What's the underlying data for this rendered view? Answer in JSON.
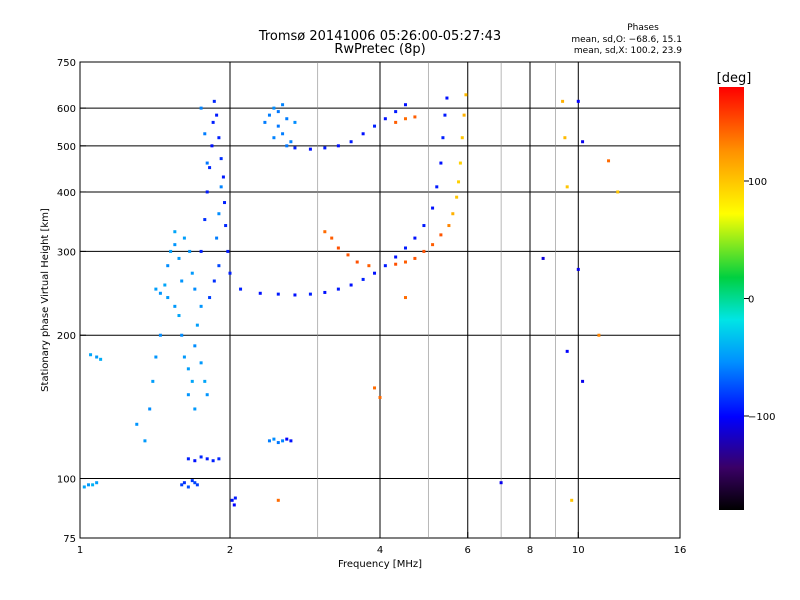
{
  "header": {
    "title_line1": "Tromsø 20141006 05:26:00-05:27:43",
    "title_line2": "RwPretec (8p)",
    "phase_title": "Phases",
    "phase_o": "mean, sd,O: −68.6, 15.1",
    "phase_x": "mean, sd,X: 100.2, 23.9"
  },
  "colorbar": {
    "unit": "[deg]",
    "ticks": [
      {
        "value": 100,
        "label": "100"
      },
      {
        "value": 0,
        "label": "0"
      },
      {
        "value": -100,
        "label": "−100"
      }
    ],
    "range": [
      -180,
      180
    ]
  },
  "chart_data": {
    "type": "scatter",
    "title": "Tromsø 20141006 05:26:00-05:27:43",
    "subtitle": "RwPretec (8p)",
    "xlabel": "Frequency [MHz]",
    "ylabel": "Stationary phase Virtual Height [km]",
    "xscale": "log",
    "yscale": "log",
    "xlim": [
      1,
      16
    ],
    "ylim": [
      75,
      750
    ],
    "x_ticks": [
      {
        "value": 1,
        "label": "1"
      },
      {
        "value": 2,
        "label": "2"
      },
      {
        "value": 4,
        "label": "4"
      },
      {
        "value": 6,
        "label": "6"
      },
      {
        "value": 8,
        "label": "8"
      },
      {
        "value": 10,
        "label": "10"
      },
      {
        "value": 16,
        "label": "16"
      }
    ],
    "y_ticks": [
      {
        "value": 75,
        "label": "75"
      },
      {
        "value": 100,
        "label": "100"
      },
      {
        "value": 200,
        "label": "200"
      },
      {
        "value": 300,
        "label": "300"
      },
      {
        "value": 400,
        "label": "400"
      },
      {
        "value": 500,
        "label": "500"
      },
      {
        "value": 600,
        "label": "600"
      },
      {
        "value": 750,
        "label": "750"
      }
    ],
    "grid_x": [
      2,
      4,
      6,
      8,
      10
    ],
    "grid_y": [
      100,
      200,
      300,
      400,
      500,
      600
    ],
    "minor_x": [
      3,
      5,
      7,
      9
    ],
    "colorbar_label": "[deg]",
    "points": [
      [
        1.02,
        96,
        -45
      ],
      [
        1.04,
        97,
        -50
      ],
      [
        1.06,
        97,
        -40
      ],
      [
        1.08,
        98,
        -48
      ],
      [
        1.05,
        182,
        -45
      ],
      [
        1.08,
        180,
        -50
      ],
      [
        1.1,
        178,
        -42
      ],
      [
        1.3,
        130,
        -52
      ],
      [
        1.35,
        120,
        -50
      ],
      [
        1.38,
        140,
        -55
      ],
      [
        1.4,
        160,
        -48
      ],
      [
        1.42,
        180,
        -52
      ],
      [
        1.45,
        200,
        -55
      ],
      [
        1.42,
        250,
        -48
      ],
      [
        1.45,
        245,
        -52
      ],
      [
        1.48,
        255,
        -45
      ],
      [
        1.5,
        240,
        -50
      ],
      [
        1.5,
        280,
        -55
      ],
      [
        1.52,
        300,
        -48
      ],
      [
        1.55,
        310,
        -52
      ],
      [
        1.55,
        230,
        -50
      ],
      [
        1.58,
        220,
        -45
      ],
      [
        1.6,
        260,
        -52
      ],
      [
        1.6,
        200,
        -55
      ],
      [
        1.62,
        180,
        -50
      ],
      [
        1.65,
        170,
        -48
      ],
      [
        1.65,
        150,
        -52
      ],
      [
        1.68,
        160,
        -45
      ],
      [
        1.7,
        140,
        -50
      ],
      [
        1.7,
        190,
        -55
      ],
      [
        1.72,
        210,
        -48
      ],
      [
        1.75,
        230,
        -52
      ],
      [
        1.75,
        175,
        -50
      ],
      [
        1.78,
        160,
        -45
      ],
      [
        1.8,
        150,
        -52
      ],
      [
        1.55,
        330,
        -45
      ],
      [
        1.58,
        290,
        -50
      ],
      [
        1.62,
        320,
        -48
      ],
      [
        1.66,
        300,
        -52
      ],
      [
        1.68,
        270,
        -50
      ],
      [
        1.7,
        250,
        -55
      ],
      [
        1.6,
        97,
        -80
      ],
      [
        1.62,
        98,
        -85
      ],
      [
        1.65,
        96,
        -75
      ],
      [
        1.68,
        99,
        -82
      ],
      [
        1.7,
        98,
        -78
      ],
      [
        1.72,
        97,
        -80
      ],
      [
        1.65,
        110,
        -90
      ],
      [
        1.7,
        109,
        -95
      ],
      [
        1.75,
        111,
        -88
      ],
      [
        1.8,
        110,
        -92
      ],
      [
        1.85,
        109,
        -90
      ],
      [
        1.9,
        110,
        -88
      ],
      [
        1.75,
        300,
        -90
      ],
      [
        1.78,
        350,
        -85
      ],
      [
        1.8,
        400,
        -92
      ],
      [
        1.82,
        450,
        -88
      ],
      [
        1.84,
        500,
        -95
      ],
      [
        1.85,
        560,
        -90
      ],
      [
        1.86,
        620,
        -88
      ],
      [
        1.88,
        580,
        -92
      ],
      [
        1.9,
        520,
        -90
      ],
      [
        1.92,
        470,
        -85
      ],
      [
        1.94,
        430,
        -92
      ],
      [
        1.95,
        380,
        -90
      ],
      [
        1.96,
        340,
        -88
      ],
      [
        1.98,
        300,
        -92
      ],
      [
        2.0,
        270,
        -90
      ],
      [
        1.82,
        240,
        -80
      ],
      [
        1.86,
        260,
        -85
      ],
      [
        1.9,
        280,
        -78
      ],
      [
        1.88,
        320,
        -60
      ],
      [
        1.9,
        360,
        -55
      ],
      [
        1.92,
        410,
        -58
      ],
      [
        1.8,
        460,
        -62
      ],
      [
        1.78,
        530,
        -60
      ],
      [
        1.75,
        600,
        -58
      ],
      [
        2.02,
        90,
        -95
      ],
      [
        2.04,
        88,
        -100
      ],
      [
        2.05,
        91,
        -92
      ],
      [
        2.4,
        120,
        -60
      ],
      [
        2.45,
        121,
        -55
      ],
      [
        2.5,
        119,
        -62
      ],
      [
        2.55,
        120,
        -58
      ],
      [
        2.6,
        121,
        -100
      ],
      [
        2.65,
        120,
        -95
      ],
      [
        2.4,
        580,
        -60
      ],
      [
        2.45,
        600,
        -55
      ],
      [
        2.5,
        590,
        -62
      ],
      [
        2.55,
        610,
        -58
      ],
      [
        2.6,
        570,
        -60
      ],
      [
        2.5,
        550,
        -62
      ],
      [
        2.45,
        520,
        -58
      ],
      [
        2.55,
        530,
        -60
      ],
      [
        2.6,
        500,
        -62
      ],
      [
        2.65,
        510,
        -58
      ],
      [
        2.7,
        560,
        -55
      ],
      [
        2.35,
        560,
        -60
      ],
      [
        2.7,
        495,
        -90
      ],
      [
        2.9,
        492,
        -95
      ],
      [
        3.1,
        495,
        -92
      ],
      [
        3.3,
        500,
        -95
      ],
      [
        3.5,
        510,
        -92
      ],
      [
        3.7,
        530,
        -95
      ],
      [
        3.9,
        550,
        -90
      ],
      [
        4.1,
        570,
        -95
      ],
      [
        4.3,
        590,
        -92
      ],
      [
        4.5,
        610,
        -95
      ],
      [
        2.1,
        250,
        -90
      ],
      [
        2.3,
        245,
        -95
      ],
      [
        2.5,
        244,
        -92
      ],
      [
        2.7,
        243,
        -95
      ],
      [
        2.9,
        244,
        -90
      ],
      [
        3.1,
        246,
        -95
      ],
      [
        3.3,
        250,
        -92
      ],
      [
        3.5,
        255,
        -95
      ],
      [
        3.7,
        262,
        -90
      ],
      [
        3.9,
        270,
        -95
      ],
      [
        4.1,
        280,
        -92
      ],
      [
        4.3,
        292,
        -95
      ],
      [
        4.5,
        305,
        -92
      ],
      [
        4.7,
        320,
        -95
      ],
      [
        4.9,
        340,
        -92
      ],
      [
        5.1,
        370,
        -95
      ],
      [
        5.2,
        410,
        -92
      ],
      [
        5.3,
        460,
        -95
      ],
      [
        5.35,
        520,
        -90
      ],
      [
        5.4,
        580,
        -92
      ],
      [
        5.45,
        630,
        -95
      ],
      [
        3.1,
        330,
        140
      ],
      [
        3.2,
        320,
        145
      ],
      [
        3.3,
        305,
        150
      ],
      [
        3.45,
        295,
        148
      ],
      [
        3.6,
        285,
        150
      ],
      [
        3.8,
        280,
        145
      ],
      [
        4.3,
        282,
        150
      ],
      [
        4.5,
        285,
        145
      ],
      [
        4.7,
        290,
        148
      ],
      [
        4.9,
        300,
        150
      ],
      [
        5.1,
        310,
        145
      ],
      [
        5.3,
        325,
        148
      ],
      [
        5.5,
        340,
        130
      ],
      [
        5.6,
        360,
        110
      ],
      [
        5.7,
        390,
        100
      ],
      [
        5.75,
        420,
        95
      ],
      [
        5.8,
        460,
        95
      ],
      [
        5.85,
        520,
        100
      ],
      [
        5.9,
        580,
        110
      ],
      [
        5.95,
        640,
        105
      ],
      [
        4.3,
        560,
        145
      ],
      [
        4.5,
        570,
        140
      ],
      [
        4.7,
        575,
        145
      ],
      [
        9.3,
        620,
        110
      ],
      [
        9.4,
        520,
        105
      ],
      [
        9.5,
        410,
        100
      ],
      [
        10.0,
        620,
        -100
      ],
      [
        10.2,
        510,
        -105
      ],
      [
        11.5,
        465,
        140
      ],
      [
        12.0,
        400,
        100
      ],
      [
        8.5,
        290,
        -110
      ],
      [
        10.0,
        275,
        -105
      ],
      [
        9.5,
        185,
        -100
      ],
      [
        10.2,
        160,
        -105
      ],
      [
        11.0,
        200,
        130
      ],
      [
        7.0,
        98,
        -105
      ],
      [
        9.7,
        90,
        100
      ],
      [
        2.5,
        90,
        140
      ],
      [
        3.9,
        155,
        140
      ],
      [
        4.0,
        148,
        140
      ],
      [
        4.5,
        240,
        140
      ]
    ]
  }
}
